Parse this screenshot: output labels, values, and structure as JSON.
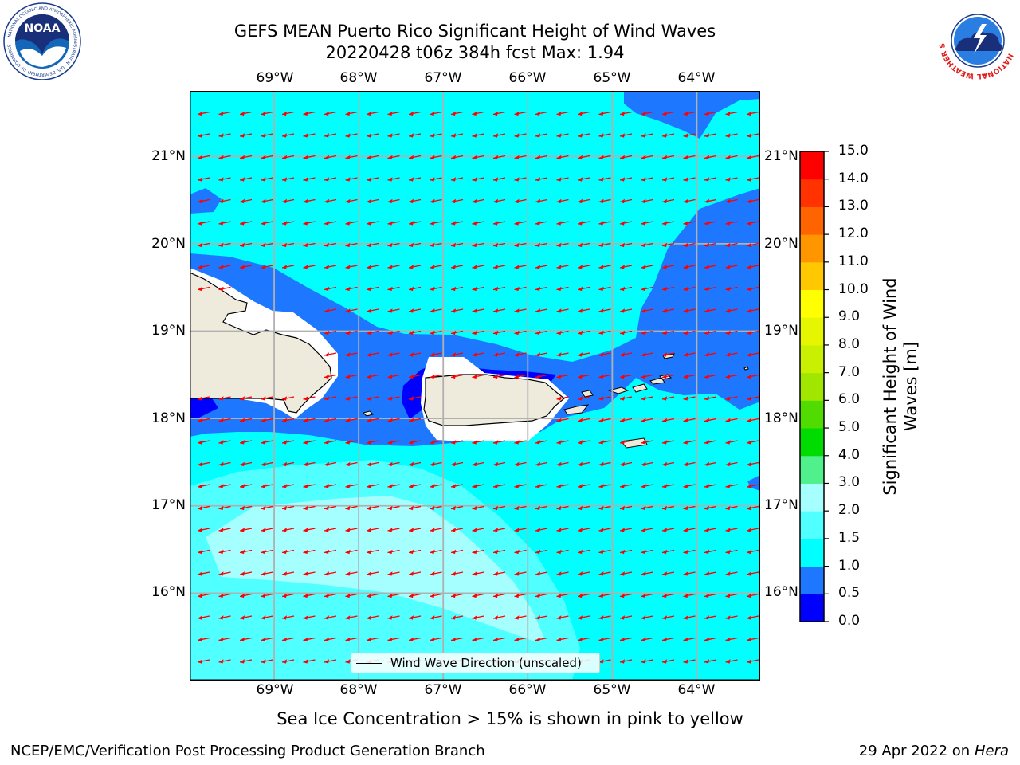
{
  "header": {
    "title_line1": "GEFS MEAN Puerto Rico Significant Height of Wind Waves",
    "title_line2": "20220428 t06z 384h fcst   Max: 1.94"
  },
  "logos": {
    "left": "NOAA",
    "left_ring_text": "NATIONAL OCEANIC AND ATMOSPHERIC ADMINISTRATION · U.S. DEPARTMENT OF COMMERCE",
    "right_ring_text": "NATIONAL WEATHER SERVICE"
  },
  "map": {
    "lon_labels": [
      "69°W",
      "68°W",
      "67°W",
      "66°W",
      "65°W",
      "64°W"
    ],
    "lat_labels": [
      "21°N",
      "20°N",
      "19°N",
      "18°N",
      "17°N",
      "16°N"
    ],
    "lon_values": [
      -69,
      -68,
      -67,
      -66,
      -65,
      -64
    ],
    "lat_values": [
      21,
      20,
      19,
      18,
      17,
      16
    ],
    "extent": {
      "lon_min": -70.0,
      "lon_max": -63.25,
      "lat_min": 15.0,
      "lat_max": 21.75
    },
    "grid": true,
    "land_color": "#efebdc",
    "arrow_color": "#ff0000",
    "wave_direction": "toward west-southwest",
    "legend_label": "Wind Wave Direction (unscaled)"
  },
  "colorbar": {
    "title": "Significant Height of Wind Waves [m]",
    "tick_labels": [
      "0.0",
      "0.5",
      "1.0",
      "1.5",
      "2.0",
      "3.0",
      "4.0",
      "5.0",
      "6.0",
      "7.0",
      "8.0",
      "9.0",
      "10.0",
      "11.0",
      "12.0",
      "13.0",
      "14.0",
      "15.0"
    ],
    "colors": [
      "#0000ff",
      "#1e78ff",
      "#00ffff",
      "#50ffff",
      "#a6ffff",
      "#50f08c",
      "#00dc00",
      "#50dc00",
      "#a0e600",
      "#c8f000",
      "#e6f500",
      "#ffff00",
      "#ffc800",
      "#ff9600",
      "#ff6400",
      "#ff3200",
      "#ff0000"
    ]
  },
  "notes": {
    "sea_ice": "Sea Ice Concentration > 15% is shown in pink to yellow",
    "branch": "NCEP/EMC/Verification Post Processing Product Generation Branch",
    "date": "29 Apr 2022 on",
    "host": "Hera"
  }
}
